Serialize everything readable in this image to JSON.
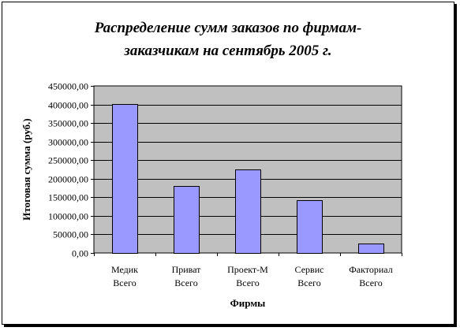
{
  "chart_data": {
    "type": "bar",
    "title_lines": [
      "Распределение сумм заказов по фирмам-",
      "заказчикам на сентябрь 2005 г."
    ],
    "xlabel": "Фирмы",
    "ylabel": "Итоговая сумма (руб.)",
    "categories": [
      [
        "Медик",
        "Всего"
      ],
      [
        "Приват",
        "Всего"
      ],
      [
        "Проект-М",
        "Всего"
      ],
      [
        "Сервис",
        "Всего"
      ],
      [
        "Факториал",
        "Всего"
      ]
    ],
    "values": [
      401000,
      181000,
      225000,
      143000,
      26000
    ],
    "ylim": [
      0,
      450000
    ],
    "ytick_step": 50000,
    "ytick_labels": [
      "0,00",
      "50000,00",
      "100000,00",
      "150000,00",
      "200000,00",
      "250000,00",
      "300000,00",
      "350000,00",
      "400000,00",
      "450000,00"
    ],
    "grid": true,
    "legend": "none",
    "colors": {
      "plot_background": "#c0c0c0",
      "bar_fill": "#9999ff",
      "bar_stroke": "#000000",
      "gridline": "#000000"
    }
  }
}
